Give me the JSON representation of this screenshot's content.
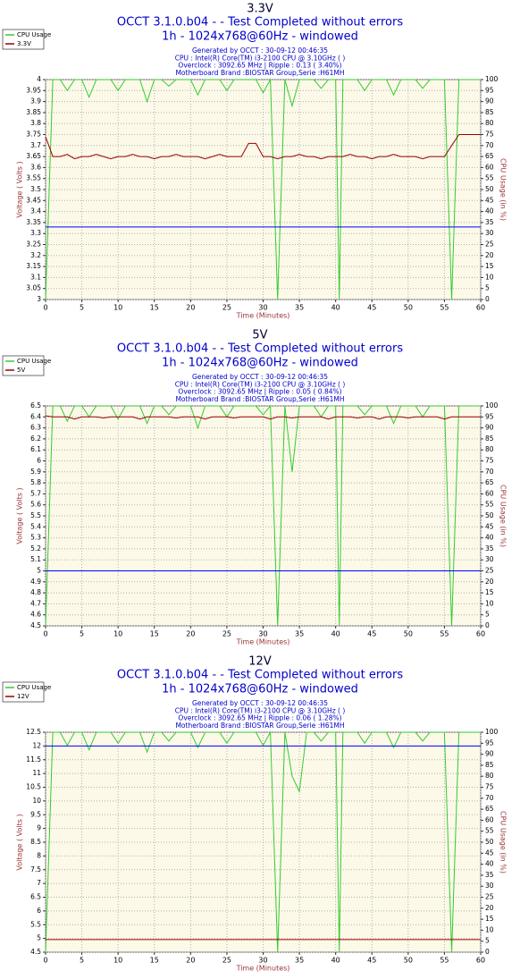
{
  "chart_data": [
    {
      "type": "line",
      "title": "3.3V",
      "subtitle": [
        "OCCT 3.1.0.b04 -  - Test Completed without errors",
        "1h - 1024x768@60Hz - windowed"
      ],
      "info": [
        "Generated by OCCT : 30-09-12 00:46:35",
        "CPU : Intel(R) Core(TM) i3-2100 CPU @ 3.10GHz (  )",
        "Overclock : 3092.65 MHz | Ripple : 0.13 ( 3.40%)",
        "Motherboard Brand :BIOSTAR Group,Serie :H61MH"
      ],
      "xlabel": "Time (Minutes)",
      "ylabel": "Voltage ( Volts )",
      "y2label": "CPU Usage (in %)",
      "xlim": [
        0,
        60
      ],
      "xticks": [
        0,
        5,
        10,
        15,
        20,
        25,
        30,
        35,
        40,
        45,
        50,
        55,
        60
      ],
      "ylim": [
        3,
        4
      ],
      "yticks": [
        3,
        3.05,
        3.1,
        3.15,
        3.2,
        3.25,
        3.3,
        3.35,
        3.4,
        3.45,
        3.5,
        3.55,
        3.6,
        3.65,
        3.7,
        3.75,
        3.8,
        3.85,
        3.9,
        3.95,
        4
      ],
      "y2lim": [
        0,
        100
      ],
      "y2ticks": [
        0,
        5,
        10,
        15,
        20,
        25,
        30,
        35,
        40,
        45,
        50,
        55,
        60,
        65,
        70,
        75,
        80,
        85,
        90,
        95,
        100
      ],
      "grid": true,
      "reference_line": 3.33,
      "reference_color": "#0000ff",
      "x": [
        0,
        1,
        2,
        3,
        4,
        5,
        6,
        7,
        8,
        9,
        10,
        11,
        12,
        13,
        14,
        15,
        16,
        17,
        18,
        19,
        20,
        21,
        22,
        23,
        24,
        25,
        26,
        27,
        28,
        29,
        30,
        31,
        32,
        33,
        34,
        35,
        36,
        37,
        38,
        39,
        40,
        40.5,
        41,
        42,
        43,
        44,
        45,
        46,
        47,
        48,
        49,
        50,
        51,
        52,
        53,
        54,
        55,
        56,
        57,
        58,
        59,
        60
      ],
      "series": [
        {
          "name": "CPU Usage",
          "color": "#33cc33",
          "axis": "y2",
          "values": [
            0,
            100,
            100,
            95,
            100,
            100,
            92,
            100,
            100,
            100,
            95,
            100,
            100,
            100,
            90,
            100,
            100,
            97,
            100,
            100,
            100,
            93,
            100,
            100,
            100,
            95,
            100,
            100,
            100,
            100,
            94,
            100,
            0,
            100,
            88,
            100,
            100,
            100,
            96,
            100,
            100,
            0,
            100,
            100,
            100,
            95,
            100,
            100,
            100,
            93,
            100,
            100,
            100,
            96,
            100,
            100,
            100,
            0,
            100,
            100,
            100,
            100
          ]
        },
        {
          "name": "3.3V",
          "color": "#990000",
          "values": [
            3.74,
            3.65,
            3.65,
            3.66,
            3.64,
            3.65,
            3.65,
            3.66,
            3.65,
            3.64,
            3.65,
            3.65,
            3.66,
            3.65,
            3.65,
            3.64,
            3.65,
            3.65,
            3.66,
            3.65,
            3.65,
            3.65,
            3.64,
            3.65,
            3.66,
            3.65,
            3.65,
            3.65,
            3.71,
            3.71,
            3.65,
            3.65,
            3.64,
            3.65,
            3.65,
            3.66,
            3.65,
            3.65,
            3.64,
            3.65,
            3.65,
            3.65,
            3.65,
            3.66,
            3.65,
            3.65,
            3.64,
            3.65,
            3.65,
            3.66,
            3.65,
            3.65,
            3.65,
            3.64,
            3.65,
            3.65,
            3.65,
            3.7,
            3.75,
            3.75,
            3.75,
            3.75
          ]
        }
      ]
    },
    {
      "type": "line",
      "title": "5V",
      "subtitle": [
        "OCCT 3.1.0.b04 -  - Test Completed without errors",
        "1h - 1024x768@60Hz - windowed"
      ],
      "info": [
        "Generated by OCCT : 30-09-12 00:46:35",
        "CPU : Intel(R) Core(TM) i3-2100 CPU @ 3.10GHz (  )",
        "Overclock : 3092.65 MHz | Ripple : 0.05 ( 0.84%)",
        "Motherboard Brand :BIOSTAR Group,Serie :H61MH"
      ],
      "xlabel": "Time (Minutes)",
      "ylabel": "Voltage ( Volts )",
      "y2label": "CPU Usage (in %)",
      "xlim": [
        0,
        60
      ],
      "xticks": [
        0,
        5,
        10,
        15,
        20,
        25,
        30,
        35,
        40,
        45,
        50,
        55,
        60
      ],
      "ylim": [
        4.5,
        6.5
      ],
      "yticks": [
        4.5,
        4.6,
        4.7,
        4.8,
        4.9,
        5,
        5.1,
        5.2,
        5.3,
        5.4,
        5.5,
        5.6,
        5.7,
        5.8,
        5.9,
        6,
        6.1,
        6.2,
        6.3,
        6.4,
        6.5
      ],
      "y2lim": [
        0,
        100
      ],
      "y2ticks": [
        0,
        5,
        10,
        15,
        20,
        25,
        30,
        35,
        40,
        45,
        50,
        55,
        60,
        65,
        70,
        75,
        80,
        85,
        90,
        95,
        100
      ],
      "grid": true,
      "reference_line": 5,
      "reference_color": "#0000ff",
      "x": [
        0,
        1,
        2,
        3,
        4,
        5,
        6,
        7,
        8,
        9,
        10,
        11,
        12,
        13,
        14,
        15,
        16,
        17,
        18,
        19,
        20,
        21,
        22,
        23,
        24,
        25,
        26,
        27,
        28,
        29,
        30,
        31,
        32,
        33,
        34,
        35,
        36,
        37,
        38,
        39,
        40,
        40.5,
        41,
        42,
        43,
        44,
        45,
        46,
        47,
        48,
        49,
        50,
        51,
        52,
        53,
        54,
        55,
        56,
        57,
        58,
        59,
        60
      ],
      "series": [
        {
          "name": "CPU Usage",
          "color": "#33cc33",
          "axis": "y2",
          "values": [
            0,
            100,
            100,
            93,
            100,
            100,
            95,
            100,
            100,
            100,
            94,
            100,
            100,
            100,
            92,
            100,
            100,
            96,
            100,
            100,
            100,
            90,
            100,
            100,
            100,
            95,
            100,
            100,
            100,
            100,
            96,
            100,
            0,
            100,
            70,
            100,
            100,
            100,
            95,
            100,
            100,
            0,
            100,
            100,
            100,
            96,
            100,
            100,
            100,
            92,
            100,
            100,
            100,
            95,
            100,
            100,
            100,
            0,
            100,
            100,
            100,
            100
          ]
        },
        {
          "name": "5V",
          "color": "#990000",
          "values": [
            6.41,
            6.4,
            6.4,
            6.4,
            6.38,
            6.4,
            6.4,
            6.4,
            6.39,
            6.4,
            6.4,
            6.4,
            6.4,
            6.38,
            6.4,
            6.4,
            6.4,
            6.4,
            6.39,
            6.4,
            6.4,
            6.4,
            6.38,
            6.4,
            6.4,
            6.4,
            6.39,
            6.4,
            6.4,
            6.4,
            6.4,
            6.38,
            6.4,
            6.4,
            6.39,
            6.4,
            6.4,
            6.4,
            6.4,
            6.38,
            6.4,
            6.4,
            6.4,
            6.4,
            6.39,
            6.4,
            6.4,
            6.38,
            6.4,
            6.4,
            6.4,
            6.39,
            6.4,
            6.4,
            6.4,
            6.4,
            6.38,
            6.4,
            6.4,
            6.4,
            6.4,
            6.4
          ]
        }
      ]
    },
    {
      "type": "line",
      "title": "12V",
      "subtitle": [
        "OCCT 3.1.0.b04 -  - Test Completed without errors",
        "1h - 1024x768@60Hz - windowed"
      ],
      "info": [
        "Generated by OCCT : 30-09-12 00:46:35",
        "CPU : Intel(R) Core(TM) i3-2100 CPU @ 3.10GHz (  )",
        "Overclock : 3092.65 MHz | Ripple : 0.06 ( 1.28%)",
        "Motherboard Brand :BIOSTAR Group,Serie :H61MH"
      ],
      "xlabel": "Time (Minutes)",
      "ylabel": "Voltage ( Volts )",
      "y2label": "CPU Usage (in %)",
      "xlim": [
        0,
        60
      ],
      "xticks": [
        0,
        5,
        10,
        15,
        20,
        25,
        30,
        35,
        40,
        45,
        50,
        55,
        60
      ],
      "ylim": [
        4.5,
        12.5
      ],
      "yticks": [
        4.5,
        5,
        5.5,
        6,
        6.5,
        7,
        7.5,
        8,
        8.5,
        9,
        9.5,
        10,
        10.5,
        11,
        11.5,
        12,
        12.5
      ],
      "y2lim": [
        0,
        100
      ],
      "y2ticks": [
        0,
        5,
        10,
        15,
        20,
        25,
        30,
        35,
        40,
        45,
        50,
        55,
        60,
        65,
        70,
        75,
        80,
        85,
        90,
        95,
        100
      ],
      "grid": true,
      "reference_line": 12,
      "reference_color": "#0000ff",
      "x": [
        0,
        1,
        2,
        3,
        4,
        5,
        6,
        7,
        8,
        9,
        10,
        11,
        12,
        13,
        14,
        15,
        16,
        17,
        18,
        19,
        20,
        21,
        22,
        23,
        24,
        25,
        26,
        27,
        28,
        29,
        30,
        31,
        32,
        33,
        34,
        35,
        36,
        37,
        38,
        39,
        40,
        40.5,
        41,
        42,
        43,
        44,
        45,
        46,
        47,
        48,
        49,
        50,
        51,
        52,
        53,
        54,
        55,
        56,
        57,
        58,
        59,
        60
      ],
      "series": [
        {
          "name": "CPU Usage",
          "color": "#33cc33",
          "axis": "y2",
          "values": [
            0,
            100,
            100,
            94,
            100,
            100,
            92,
            100,
            100,
            100,
            95,
            100,
            100,
            100,
            91,
            100,
            100,
            96,
            100,
            100,
            100,
            93,
            100,
            100,
            100,
            95,
            100,
            100,
            100,
            100,
            94,
            100,
            0,
            100,
            80,
            73,
            100,
            100,
            96,
            100,
            100,
            0,
            100,
            100,
            100,
            95,
            100,
            100,
            100,
            93,
            100,
            100,
            100,
            96,
            100,
            100,
            100,
            0,
            100,
            100,
            100,
            100
          ]
        },
        {
          "name": "12V",
          "color": "#990000",
          "values": [
            4.96,
            4.96,
            4.96,
            4.96,
            4.96,
            4.96,
            4.96,
            4.96,
            4.96,
            4.96,
            4.96,
            4.96,
            4.96,
            4.96,
            4.96,
            4.96,
            4.96,
            4.96,
            4.96,
            4.96,
            4.96,
            4.96,
            4.96,
            4.96,
            4.96,
            4.96,
            4.96,
            4.96,
            4.96,
            4.96,
            4.96,
            4.96,
            4.96,
            4.96,
            4.96,
            4.96,
            4.96,
            4.96,
            4.96,
            4.96,
            4.96,
            4.96,
            4.96,
            4.96,
            4.96,
            4.96,
            4.96,
            4.96,
            4.96,
            4.96,
            4.96,
            4.96,
            4.96,
            4.96,
            4.96,
            4.96,
            4.96,
            4.96,
            4.96,
            4.96,
            4.96,
            4.96
          ]
        }
      ]
    }
  ]
}
